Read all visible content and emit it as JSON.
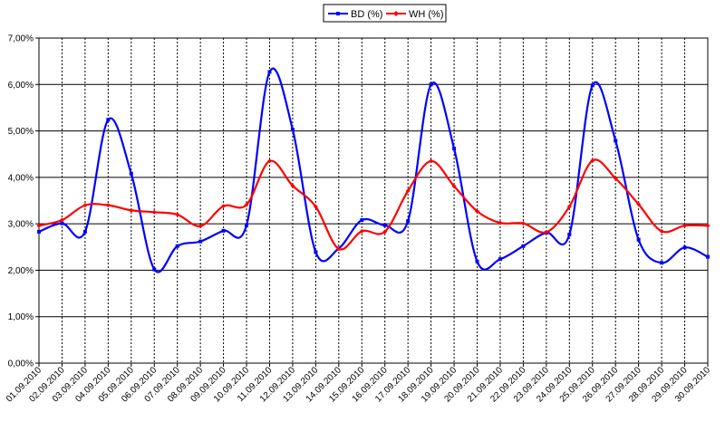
{
  "chart_data": {
    "type": "line",
    "categories": [
      "01.09.2010",
      "02.09.2010",
      "03.09.2010",
      "04.09.2010",
      "05.09.2010",
      "06.09.2010",
      "07.09.2010",
      "08.09.2010",
      "09.09.2010",
      "10.09.2010",
      "11.09.2010",
      "12.09.2010",
      "13.09.2010",
      "14.09.2010",
      "15.09.2010",
      "16.09.2010",
      "17.09.2010",
      "18.09.2010",
      "19.09.2010",
      "20.09.2010",
      "21.09.2010",
      "22.09.2010",
      "23.09.2010",
      "24.09.2010",
      "25.09.2010",
      "26.09.2010",
      "27.09.2010",
      "28.09.2010",
      "29.09.2010",
      "30.09.2010"
    ],
    "series": [
      {
        "name": "BD (%)",
        "color": "#0000ff",
        "values": [
          2.83,
          3.01,
          2.83,
          5.24,
          4.08,
          2.02,
          2.52,
          2.62,
          2.85,
          2.97,
          6.27,
          5.03,
          2.39,
          2.47,
          3.08,
          2.97,
          3.06,
          6.0,
          4.62,
          2.19,
          2.24,
          2.52,
          2.81,
          2.77,
          5.98,
          4.79,
          2.66,
          2.16,
          2.49,
          2.29
        ]
      },
      {
        "name": "WH (%)",
        "color": "#ff0000",
        "values": [
          2.96,
          3.08,
          3.4,
          3.4,
          3.29,
          3.25,
          3.2,
          2.95,
          3.38,
          3.41,
          4.35,
          3.82,
          3.37,
          2.46,
          2.84,
          2.83,
          3.71,
          4.35,
          3.81,
          3.27,
          3.02,
          3.01,
          2.82,
          3.37,
          4.36,
          3.98,
          3.42,
          2.84,
          2.96,
          2.96
        ]
      }
    ],
    "y_ticks": [
      "0,00%",
      "1,00%",
      "2,00%",
      "3,00%",
      "4,00%",
      "5,00%",
      "6,00%",
      "7,00%"
    ],
    "ylim": [
      0,
      7
    ],
    "grid": true,
    "legend_position": "top-center",
    "title": "",
    "xlabel": "",
    "ylabel": ""
  }
}
